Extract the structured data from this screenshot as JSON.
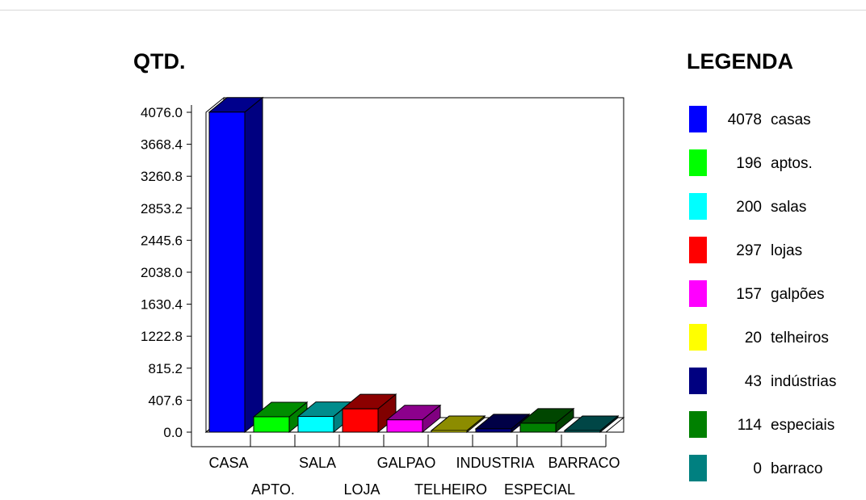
{
  "chart_data": {
    "type": "bar",
    "title": "QTD.",
    "legend_title": "LEGENDA",
    "categories": [
      "CASA",
      "APTO.",
      "SALA",
      "LOJA",
      "GALPAO",
      "TELHEIRO",
      "INDUSTRIA",
      "ESPECIAL",
      "BARRACO"
    ],
    "values": [
      4078,
      196,
      200,
      297,
      157,
      20,
      43,
      114,
      0
    ],
    "y_ticks": [
      "0.0",
      "407.6",
      "815.2",
      "1222.8",
      "1630.4",
      "2038.0",
      "2445.6",
      "2853.2",
      "3260.8",
      "3668.4",
      "4076.0"
    ],
    "ylim": [
      0,
      4076
    ],
    "colors": [
      "#0000ff",
      "#00ff00",
      "#00ffff",
      "#ff0000",
      "#ff00ff",
      "#ffff00",
      "#000080",
      "#008000",
      "#008080"
    ],
    "legend": [
      {
        "count": "4078",
        "label": "casas"
      },
      {
        "count": "196",
        "label": "aptos."
      },
      {
        "count": "200",
        "label": "salas"
      },
      {
        "count": "297",
        "label": "lojas"
      },
      {
        "count": "157",
        "label": "galpões"
      },
      {
        "count": "20",
        "label": "telheiros"
      },
      {
        "count": "43",
        "label": "indústrias"
      },
      {
        "count": "114",
        "label": "especiais"
      },
      {
        "count": "0",
        "label": "barraco"
      }
    ],
    "legend_placement": "right",
    "grid": false
  }
}
